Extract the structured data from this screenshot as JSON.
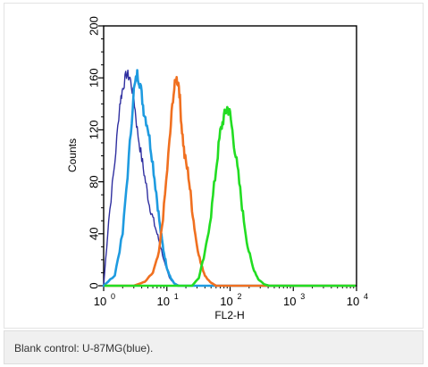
{
  "caption": "Blank control: U-87MG(blue).",
  "chart_data": {
    "type": "line",
    "xlabel": "FL2-H",
    "ylabel": "Counts",
    "x_scale": "log",
    "xlim": [
      1,
      10000
    ],
    "ylim": [
      0,
      200
    ],
    "x_ticks": [
      {
        "value": 1,
        "base": "10",
        "exp": "0"
      },
      {
        "value": 10,
        "base": "10",
        "exp": "1"
      },
      {
        "value": 100,
        "base": "10",
        "exp": "2"
      },
      {
        "value": 1000,
        "base": "10",
        "exp": "3"
      },
      {
        "value": 10000,
        "base": "10",
        "exp": "4"
      }
    ],
    "y_ticks": [
      "0",
      "40",
      "80",
      "120",
      "160",
      "200"
    ],
    "grid": false,
    "series": [
      {
        "color": "#2f2fa0",
        "x": [
          1,
          1.2,
          1.5,
          1.8,
          2.0,
          2.3,
          2.6,
          3.0,
          3.4,
          4.0,
          4.6,
          5.3,
          6.0,
          7.0,
          8.0,
          9.5,
          11,
          13,
          16
        ],
        "y": [
          0,
          50,
          95,
          140,
          152,
          163,
          160,
          145,
          120,
          98,
          80,
          62,
          52,
          40,
          30,
          15,
          6,
          2,
          0
        ]
      },
      {
        "color": "#1e9be0",
        "x": [
          1,
          1.5,
          2.0,
          2.5,
          3.0,
          3.4,
          3.8,
          4.3,
          5.0,
          5.8,
          6.8,
          7.8,
          8.8,
          10,
          11.5,
          13,
          15
        ],
        "y": [
          0,
          8,
          40,
          98,
          150,
          163,
          155,
          135,
          122,
          100,
          72,
          45,
          28,
          14,
          6,
          2,
          0
        ]
      },
      {
        "color": "#f07020",
        "x": [
          3,
          4.5,
          6,
          7.5,
          9,
          11,
          12.5,
          14,
          15.5,
          17,
          19,
          22,
          25,
          29,
          34,
          40,
          48,
          60
        ],
        "y": [
          0,
          3,
          10,
          25,
          60,
          110,
          145,
          160,
          155,
          125,
          100,
          85,
          60,
          35,
          18,
          8,
          3,
          0
        ]
      },
      {
        "color": "#22dd22",
        "x": [
          25,
          32,
          40,
          50,
          60,
          70,
          80,
          90,
          100,
          115,
          135,
          160,
          190,
          230,
          280,
          350,
          420
        ],
        "y": [
          0,
          6,
          25,
          55,
          90,
          118,
          130,
          137,
          132,
          110,
          85,
          55,
          30,
          14,
          5,
          1,
          0
        ]
      }
    ]
  }
}
